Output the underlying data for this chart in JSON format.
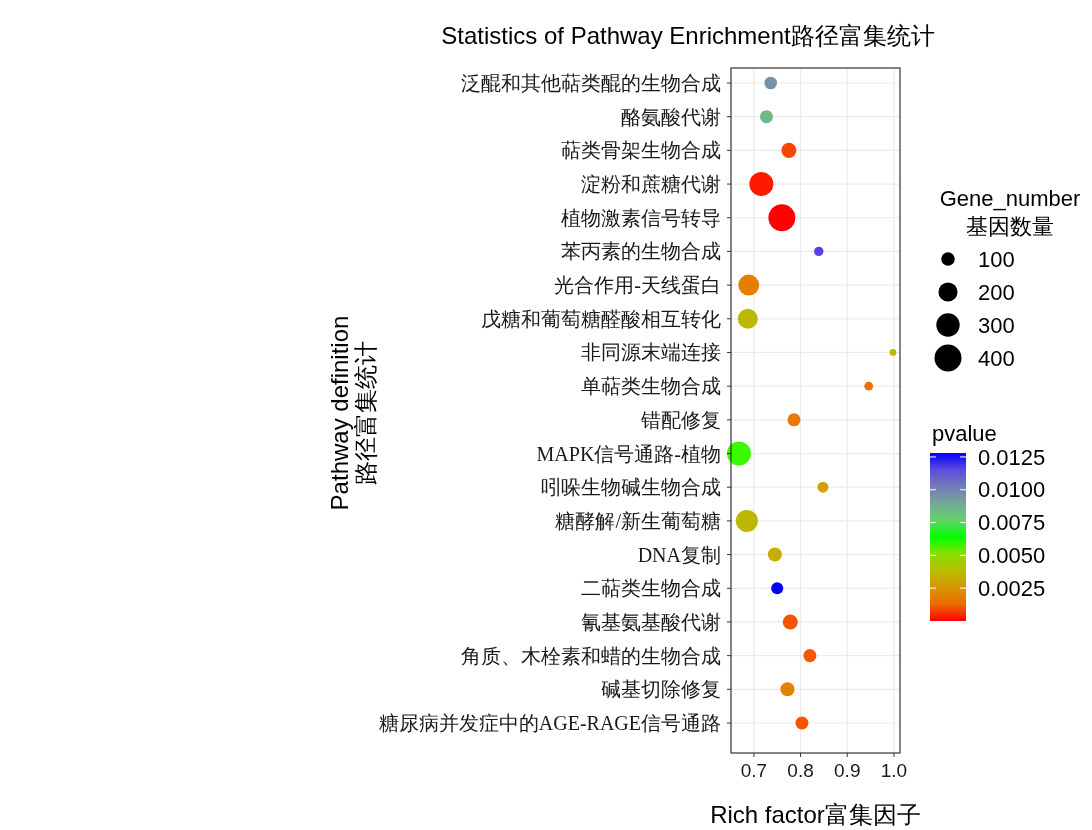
{
  "chart_data": {
    "type": "bubble",
    "orientation": "horizontal",
    "title": "Statistics of Pathway Enrichment路径富集统计",
    "xlabel": "Rich factor富集因子",
    "ylabel": "Pathway definition\n路径富集统计",
    "legend_title": "Gene_number\n基因数量",
    "clabel": "pvalue",
    "categories": [
      "泛醌和其他萜类醌的生物合成",
      "酪氨酸代谢",
      "萜类骨架生物合成",
      "淀粉和蔗糖代谢",
      "植物激素信号转导",
      "苯丙素的生物合成",
      "光合作用-天线蛋白",
      "戊糖和葡萄糖醛酸相互转化",
      "非同源末端连接",
      "单萜类生物合成",
      "错配修复",
      "MAPK信号通路-植物",
      "吲哚生物碱生物合成",
      "糖酵解/新生葡萄糖",
      "DNA复制",
      "二萜类生物合成",
      "氰基氨基酸代谢",
      "角质、木栓素和蜡的生物合成",
      "碱基切除修复",
      "糖尿病并发症中的AGE-RAGE信号通路"
    ],
    "values": [
      0.736,
      0.727,
      0.775,
      0.716,
      0.76,
      0.839,
      0.689,
      0.687,
      0.998,
      0.946,
      0.786,
      0.668,
      0.848,
      0.685,
      0.745,
      0.75,
      0.778,
      0.82,
      0.772,
      0.803
    ],
    "sizes": [
      88,
      93,
      124,
      316,
      400,
      48,
      242,
      220,
      25,
      42,
      93,
      316,
      66,
      266,
      108,
      79,
      124,
      93,
      108,
      93
    ],
    "size_legend": [
      100,
      200,
      300,
      400
    ],
    "cvalues": [
      0.0096,
      0.0085,
      0.0006,
      0.0001,
      0.0,
      0.0118,
      0.0018,
      0.0036,
      0.0036,
      0.0014,
      0.0017,
      0.0062,
      0.0028,
      0.0036,
      0.0032,
      0.0128,
      0.0008,
      0.0009,
      0.0019,
      0.0008
    ],
    "clim": [
      0.0,
      0.0128
    ],
    "cticks": [
      {
        "value": 0.0125,
        "label": "0.0125"
      },
      {
        "value": 0.01,
        "label": "0.0100"
      },
      {
        "value": 0.0075,
        "label": "0.0075"
      },
      {
        "value": 0.005,
        "label": "0.0050"
      },
      {
        "value": 0.0025,
        "label": "0.0025"
      }
    ],
    "xlim": [
      0.651,
      1.013
    ],
    "xticks": [
      0.7,
      0.8,
      0.9,
      {
        "value": 1.0,
        "label": "1.0"
      }
    ],
    "grid": true
  }
}
